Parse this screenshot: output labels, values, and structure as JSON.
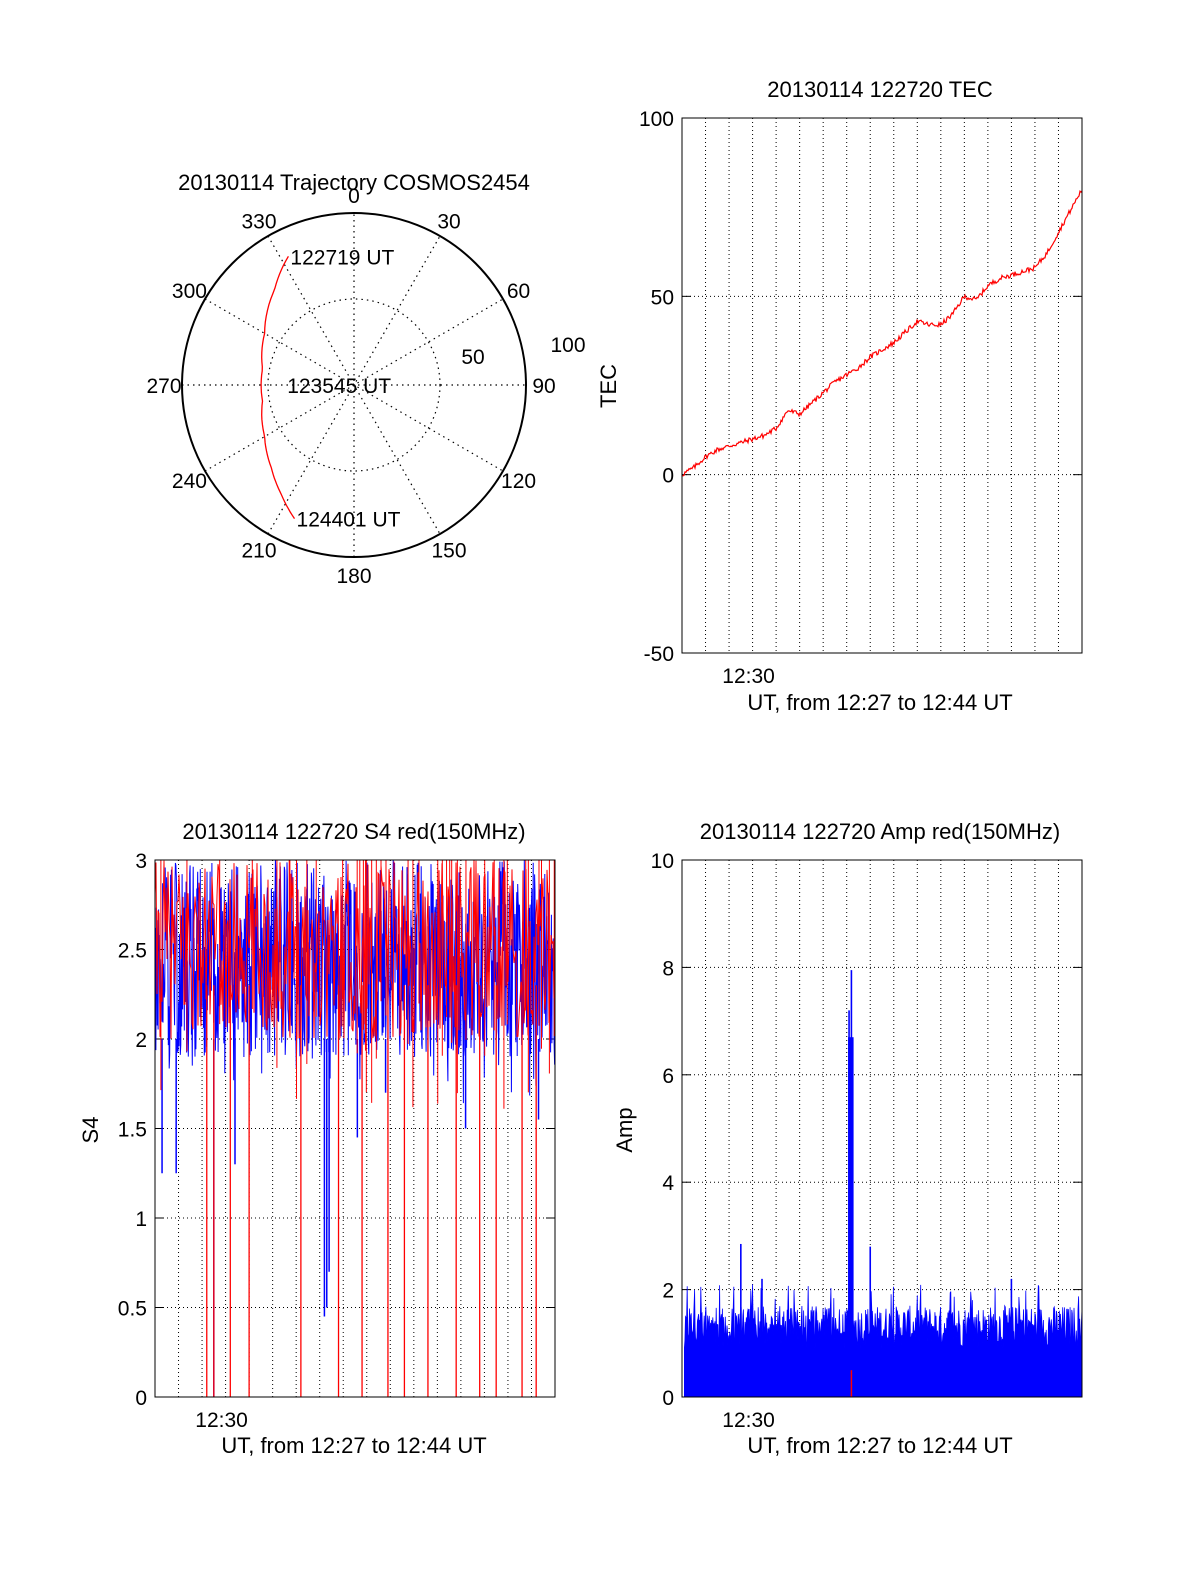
{
  "chart_data": [
    {
      "type": "polar",
      "title": "20130114 Trajectory COSMOS2454",
      "azimuth_labels": [
        "0",
        "30",
        "60",
        "90",
        "120",
        "150",
        "180",
        "210",
        "240",
        "270",
        "300",
        "330"
      ],
      "radial_labels": [
        "50",
        "100"
      ],
      "radial_range": [
        0,
        100
      ],
      "grid": true,
      "annotations": [
        {
          "text": "122719 UT",
          "az": 333,
          "r": 84
        },
        {
          "text": "123545 UT",
          "az": 270,
          "r": 40
        },
        {
          "text": "124401 UT",
          "az": 204,
          "r": 85
        }
      ],
      "series": [
        {
          "color": "#ff0000",
          "az": [
            333,
            320,
            300,
            280,
            260,
            240,
            225,
            214,
            204
          ],
          "r": [
            84,
            72,
            60,
            54,
            54,
            60,
            68,
            76,
            85
          ]
        }
      ]
    },
    {
      "type": "line",
      "title": "20130114 122720 TEC",
      "xlabel": "UT, from 12:27 to 12:44 UT",
      "ylabel": "TEC",
      "ylim": [
        -50,
        100
      ],
      "yticks": [
        "-50",
        "0",
        "50",
        "100"
      ],
      "xtick_labels": [
        {
          "x": 3.0,
          "label": "12:30"
        }
      ],
      "xlim": [
        0,
        17
      ],
      "grid": true,
      "series": [
        {
          "color": "#ff0000",
          "x": [
            0,
            0.5,
            1.0,
            1.5,
            2.0,
            2.5,
            3.0,
            3.5,
            4.0,
            4.5,
            5.0,
            5.5,
            6.0,
            6.5,
            7.0,
            7.5,
            8.0,
            8.5,
            9.0,
            9.5,
            10.0,
            10.5,
            11.0,
            11.5,
            12.0,
            12.5,
            13.0,
            13.5,
            14.0,
            14.5,
            15.0,
            15.5,
            16.0,
            16.5,
            17.0
          ],
          "y": [
            0,
            2,
            5,
            7,
            8,
            9,
            10,
            11,
            13,
            18,
            17,
            20,
            23,
            26,
            28,
            30,
            33,
            35,
            37,
            40,
            43,
            42,
            42,
            45,
            50,
            49,
            53,
            55,
            56,
            57,
            58,
            62,
            68,
            74,
            80
          ]
        }
      ]
    },
    {
      "type": "line",
      "title": "20130114 122720 S4 red(150MHz)",
      "xlabel": "UT, from 12:27 to 12:44 UT",
      "ylabel": "S4",
      "ylim": [
        0,
        3
      ],
      "yticks": [
        "0",
        "0.5",
        "1",
        "1.5",
        "2",
        "2.5",
        "3"
      ],
      "xtick_labels": [
        {
          "x": 3.0,
          "label": "12:30"
        }
      ],
      "xlim": [
        0,
        17
      ],
      "grid": true,
      "noise_band": {
        "blue_min": 1.9,
        "blue_max": 3.0,
        "red_min": 2.0,
        "red_max": 3.0
      },
      "red_drops": [
        2.2,
        2.5,
        3.2,
        4.0,
        6.2,
        7.8,
        8.8,
        9.9,
        10.6,
        11.6,
        12.8,
        13.8,
        14.5,
        15.6,
        16.2
      ],
      "blue_dips": [
        {
          "x": 0.3,
          "y": 1.25
        },
        {
          "x": 0.9,
          "y": 1.25
        },
        {
          "x": 2.5,
          "y": 0.0
        },
        {
          "x": 3.4,
          "y": 1.3
        },
        {
          "x": 7.2,
          "y": 0.45
        },
        {
          "x": 7.3,
          "y": 0.5
        },
        {
          "x": 7.4,
          "y": 0.7
        },
        {
          "x": 8.6,
          "y": 1.45
        },
        {
          "x": 9.8,
          "y": 1.7
        },
        {
          "x": 13.2,
          "y": 1.5
        },
        {
          "x": 16.3,
          "y": 1.55
        }
      ]
    },
    {
      "type": "line",
      "title": "20130114 122720 Amp red(150MHz)",
      "xlabel": "UT, from 12:27 to 12:44 UT",
      "ylabel": "Amp",
      "ylim": [
        0,
        10
      ],
      "yticks": [
        "0",
        "2",
        "4",
        "6",
        "8",
        "10"
      ],
      "xtick_labels": [
        {
          "x": 3.0,
          "label": "12:30"
        }
      ],
      "xlim": [
        0,
        17
      ],
      "grid": true,
      "noise_band": {
        "blue_min": 0.0,
        "blue_max": 1.7
      },
      "spikes": [
        {
          "x": 2.5,
          "y": 2.85
        },
        {
          "x": 3.4,
          "y": 2.2
        },
        {
          "x": 7.1,
          "y": 7.2
        },
        {
          "x": 7.2,
          "y": 7.95
        },
        {
          "x": 8.0,
          "y": 2.8
        },
        {
          "x": 14.0,
          "y": 2.2
        }
      ],
      "red_marks": [
        {
          "x": 7.2,
          "y": 0.5
        }
      ]
    }
  ]
}
